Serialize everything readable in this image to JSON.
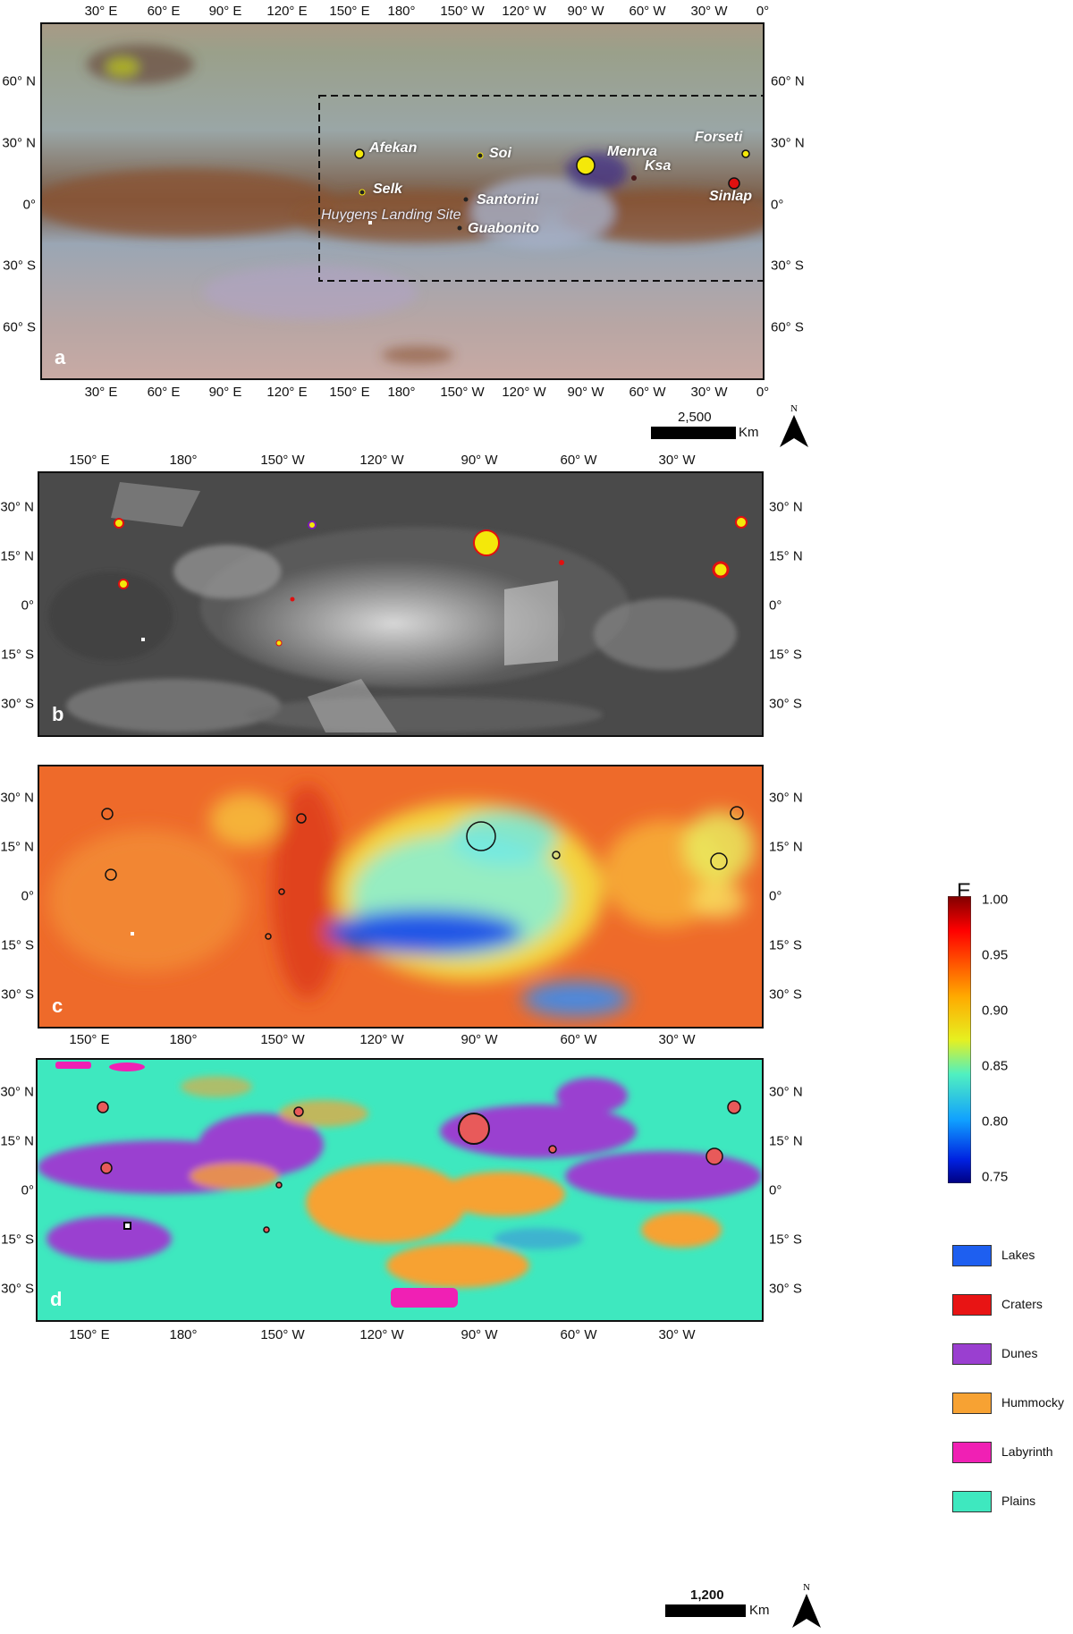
{
  "panels": {
    "a": {
      "label": "a",
      "top_ticks": [
        "30° E",
        "60° E",
        "90° E",
        "120° E",
        "150° E",
        "180°",
        "150° W",
        "120° W",
        "90° W",
        "60° W",
        "30° W",
        "0°"
      ],
      "bottom_ticks": [
        "30° E",
        "60° E",
        "90° E",
        "120° E",
        "150° E",
        "180°",
        "150° W",
        "120° W",
        "90° W",
        "60° W",
        "30° W",
        "0°"
      ],
      "lat_ticks": [
        "60° N",
        "30° N",
        "0°",
        "30° S",
        "60° S"
      ],
      "sites": [
        {
          "name": "Afekan"
        },
        {
          "name": "Soi"
        },
        {
          "name": "Menrva"
        },
        {
          "name": "Ksa"
        },
        {
          "name": "Forseti"
        },
        {
          "name": "Selk"
        },
        {
          "name": "Santorini"
        },
        {
          "name": "Sinlap"
        },
        {
          "name": "Huygens Landing Site"
        },
        {
          "name": "Guabonito"
        }
      ]
    },
    "b": {
      "label": "b",
      "lon_ticks": [
        "150° E",
        "180°",
        "150° W",
        "120° W",
        "90° W",
        "60° W",
        "30° W"
      ],
      "lat_ticks": [
        "30° N",
        "15° N",
        "0°",
        "15° S",
        "30° S"
      ]
    },
    "c": {
      "label": "c",
      "lon_ticks": [
        "150° E",
        "180°",
        "150° W",
        "120° W",
        "90° W",
        "60° W",
        "30° W"
      ],
      "lat_ticks": [
        "30° N",
        "15° N",
        "0°",
        "15° S",
        "30° S"
      ],
      "colorbar": {
        "title": "E",
        "ticks": [
          "1.00",
          "0.95",
          "0.90",
          "0.85",
          "0.80",
          "0.75"
        ]
      }
    },
    "d": {
      "label": "d",
      "lon_ticks": [
        "150° E",
        "180°",
        "150° W",
        "120° W",
        "90° W",
        "60° W",
        "30° W"
      ],
      "lat_ticks": [
        "30° N",
        "15° N",
        "0°",
        "15° S",
        "30° S"
      ],
      "legend": [
        {
          "label": "Lakes",
          "color": "#1e5ff0"
        },
        {
          "label": "Craters",
          "color": "#e81414"
        },
        {
          "label": "Dunes",
          "color": "#9a3fd0"
        },
        {
          "label": "Hummocky",
          "color": "#f7a233"
        },
        {
          "label": "Labyrinth",
          "color": "#f020b4"
        },
        {
          "label": "Plains",
          "color": "#3ee8bf"
        }
      ]
    }
  },
  "scalebars": {
    "top": {
      "label": "2,500",
      "unit": "Km"
    },
    "bottom": {
      "label": "1,200",
      "unit": "Km"
    }
  },
  "north_label": "N"
}
